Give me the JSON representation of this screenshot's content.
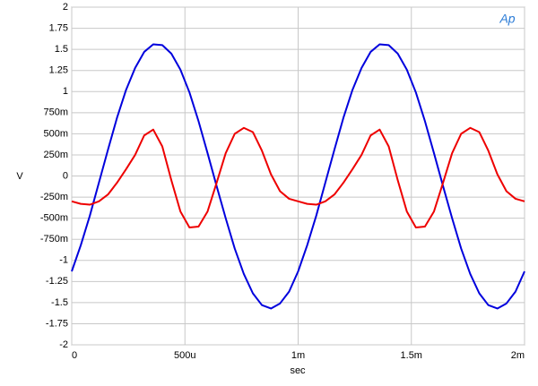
{
  "chart_data": {
    "type": "line",
    "logo": "Ap",
    "xlabel": "sec",
    "ylabel": "V",
    "x": [
      0,
      4e-05,
      8e-05,
      0.00012,
      0.00016,
      0.0002,
      0.00024,
      0.00028,
      0.00032,
      0.00036,
      0.0004,
      0.00044,
      0.00048,
      0.00052,
      0.00056,
      0.0006,
      0.00064,
      0.00068,
      0.00072,
      0.00076,
      0.0008,
      0.00084,
      0.00088,
      0.00092,
      0.00096,
      0.001,
      0.00104,
      0.00108,
      0.00112,
      0.00116,
      0.0012,
      0.00124,
      0.00128,
      0.00132,
      0.00136,
      0.0014,
      0.00144,
      0.00148,
      0.00152,
      0.00156,
      0.0016,
      0.00164,
      0.00168,
      0.00172,
      0.00176,
      0.0018,
      0.00184,
      0.00188,
      0.00192,
      0.00196,
      0.002
    ],
    "series": [
      {
        "color": "#0000dd",
        "values": [
          -1.13,
          -0.82,
          -0.47,
          -0.08,
          0.31,
          0.69,
          1.02,
          1.28,
          1.47,
          1.56,
          1.55,
          1.45,
          1.26,
          0.99,
          0.65,
          0.27,
          -0.12,
          -0.5,
          -0.86,
          -1.16,
          -1.39,
          -1.53,
          -1.57,
          -1.51,
          -1.37,
          -1.13,
          -0.82,
          -0.47,
          -0.08,
          0.31,
          0.69,
          1.02,
          1.28,
          1.47,
          1.56,
          1.55,
          1.45,
          1.26,
          0.99,
          0.65,
          0.27,
          -0.12,
          -0.5,
          -0.86,
          -1.16,
          -1.39,
          -1.53,
          -1.57,
          -1.51,
          -1.37,
          -1.13
        ]
      },
      {
        "color": "#ee0000",
        "values": [
          -0.3,
          -0.33,
          -0.34,
          -0.3,
          -0.22,
          -0.08,
          0.08,
          0.25,
          0.48,
          0.55,
          0.35,
          -0.05,
          -0.42,
          -0.61,
          -0.6,
          -0.42,
          -0.08,
          0.27,
          0.5,
          0.57,
          0.52,
          0.3,
          0.02,
          -0.18,
          -0.27,
          -0.3,
          -0.33,
          -0.34,
          -0.3,
          -0.22,
          -0.08,
          0.08,
          0.25,
          0.48,
          0.55,
          0.35,
          -0.05,
          -0.42,
          -0.61,
          -0.6,
          -0.42,
          -0.08,
          0.27,
          0.5,
          0.57,
          0.52,
          0.3,
          0.02,
          -0.18,
          -0.27,
          -0.3
        ]
      }
    ],
    "xlim": [
      0,
      0.002
    ],
    "xticks": [
      0,
      {
        "value": 0.0005,
        "label": "500u"
      },
      {
        "value": 0.001,
        "label": "1m"
      },
      {
        "value": 0.0015,
        "label": "1.5m"
      },
      {
        "value": 0.002,
        "label": "2m"
      }
    ],
    "ylim": [
      -2,
      2
    ],
    "yticks": [
      2,
      1.75,
      1.5,
      1.25,
      1,
      {
        "value": 0.75,
        "label": "750m"
      },
      {
        "value": 0.5,
        "label": "500m"
      },
      {
        "value": 0.25,
        "label": "250m"
      },
      0,
      {
        "value": -0.25,
        "label": "-250m"
      },
      {
        "value": -0.5,
        "label": "-500m"
      },
      {
        "value": -0.75,
        "label": "-750m"
      },
      -1,
      -1.25,
      -1.5,
      -1.75,
      -2
    ],
    "grid": true
  }
}
